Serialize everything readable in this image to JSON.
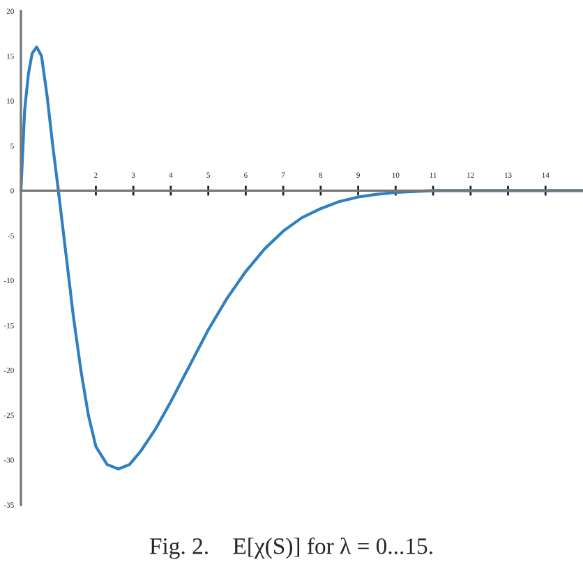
{
  "chart_data": {
    "type": "line",
    "title": "Fig. 2.    E[χ(S)] for λ = 0...15.",
    "x": [
      0,
      0.1,
      0.2,
      0.3,
      0.42,
      0.55,
      0.7,
      0.85,
      1.0,
      1.2,
      1.4,
      1.6,
      1.8,
      2.0,
      2.3,
      2.6,
      2.9,
      3.2,
      3.6,
      4.0,
      4.5,
      5,
      5.5,
      6,
      6.5,
      7,
      7.5,
      8,
      8.5,
      9,
      9.5,
      10,
      11,
      12,
      13,
      14,
      15
    ],
    "series": [
      {
        "color": "#2f7fc1",
        "values": [
          0,
          9,
          13,
          15.3,
          16,
          15,
          10.5,
          5,
          0,
          -7,
          -14,
          -20,
          -25,
          -28.5,
          -30.5,
          -31,
          -30.5,
          -29,
          -26.5,
          -23.5,
          -19.5,
          -15.5,
          -12,
          -9,
          -6.5,
          -4.5,
          -3,
          -2,
          -1.2,
          -0.7,
          -0.4,
          -0.2,
          0,
          0,
          0,
          0,
          0
        ]
      }
    ],
    "xlim": [
      0,
      15
    ],
    "ylim": [
      -35,
      20
    ],
    "xticks": [
      {
        "value": 1,
        "label": null
      },
      2,
      3,
      4,
      5,
      6,
      7,
      8,
      9,
      10,
      11,
      12,
      13,
      14
    ],
    "yticks": [
      {
        "value": -35,
        "label": "-35"
      },
      {
        "value": -30,
        "label": "-30"
      },
      {
        "value": -25,
        "label": "-25"
      },
      {
        "value": -20,
        "label": "-20"
      },
      {
        "value": -15,
        "label": "-15"
      },
      {
        "value": -10,
        "label": "-10"
      },
      {
        "value": -5,
        "label": "-5"
      },
      0,
      5,
      10,
      15,
      20
    ],
    "grid": false,
    "legend": false,
    "marker": "none",
    "line_style": "solid"
  }
}
